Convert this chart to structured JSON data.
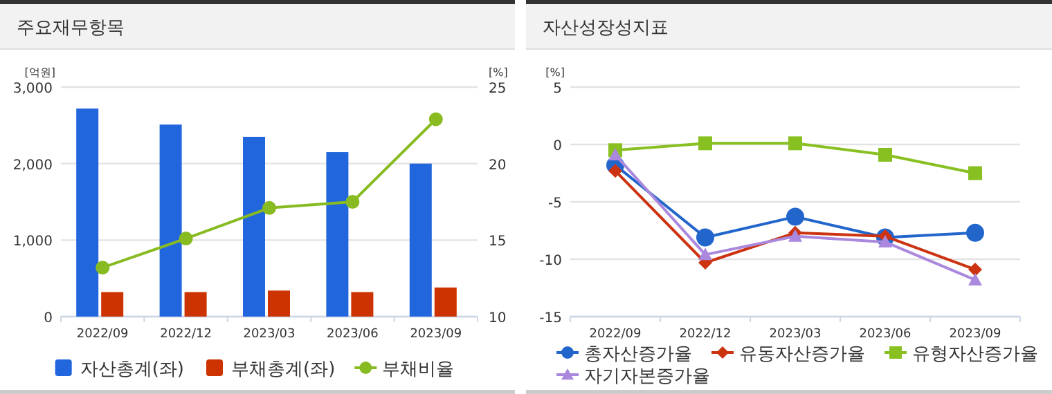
{
  "chart_data": [
    {
      "type": "bar",
      "title": "주요재무항목",
      "ylabel": "[억원]",
      "y2label": "[%]",
      "categories": [
        "2022/09",
        "2022/12",
        "2023/03",
        "2023/06",
        "2023/09"
      ],
      "series": [
        {
          "name": "자산총계(좌)",
          "color": "#2266dd",
          "values": [
            2720,
            2510,
            2350,
            2150,
            2000
          ]
        },
        {
          "name": "부채총계(좌)",
          "color": "#cc3300",
          "values": [
            320,
            320,
            340,
            320,
            380
          ]
        },
        {
          "name": "부채비율",
          "color": "#88bb22",
          "type": "line",
          "axis": "y2",
          "marker": "circle",
          "values": [
            13.2,
            15.1,
            17.1,
            17.5,
            22.9
          ]
        }
      ],
      "ylim": [
        0,
        3000
      ],
      "yticks": [
        0,
        {
          "value": 1000,
          "label": "1,000"
        },
        {
          "value": 2000,
          "label": "2,000"
        },
        {
          "value": 3000,
          "label": "3,000"
        }
      ],
      "y2lim": [
        10,
        25
      ],
      "y2ticks": [
        10,
        15,
        20,
        25
      ],
      "grid": "y",
      "legend": "bottom"
    },
    {
      "type": "line",
      "title": "자산성장성지표",
      "ylabel": "[%]",
      "categories": [
        "2022/09",
        "2022/12",
        "2023/03",
        "2023/06",
        "2023/09"
      ],
      "series": [
        {
          "name": "총자산증가율",
          "color": "#2266cc",
          "marker": "circle",
          "values": [
            -1.8,
            -8.1,
            -6.3,
            -8.1,
            -7.7
          ]
        },
        {
          "name": "유동자산증가율",
          "color": "#cc3311",
          "marker": "diamond",
          "values": [
            -2.3,
            -10.3,
            -7.7,
            -8.0,
            -10.9
          ]
        },
        {
          "name": "유형자산증가율",
          "color": "#88c022",
          "marker": "square",
          "values": [
            -0.5,
            0.1,
            0.1,
            -0.9,
            -2.5
          ]
        },
        {
          "name": "자기자본증가율",
          "color": "#aa88dd",
          "marker": "triangle",
          "values": [
            -0.9,
            -9.6,
            -8.0,
            -8.5,
            -11.8
          ]
        }
      ],
      "ylim": [
        -15,
        5
      ],
      "yticks": [
        -15,
        -10,
        -5,
        0,
        5
      ],
      "grid": "y",
      "legend": "bottom"
    }
  ]
}
